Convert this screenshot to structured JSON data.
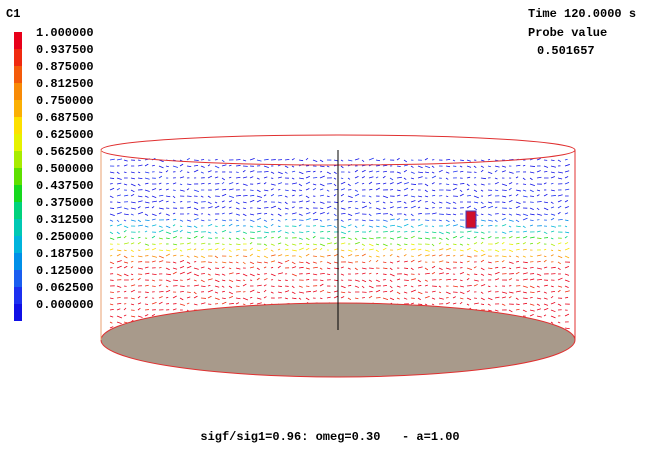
{
  "legend": {
    "title": "C1",
    "entries": [
      {
        "label": "1.000000",
        "color": "#e8001a"
      },
      {
        "label": "0.937500",
        "color": "#f02a10"
      },
      {
        "label": "0.875000",
        "color": "#f45a0a"
      },
      {
        "label": "0.812500",
        "color": "#f88a06"
      },
      {
        "label": "0.750000",
        "color": "#fbb004"
      },
      {
        "label": "0.687500",
        "color": "#fde000"
      },
      {
        "label": "0.625000",
        "color": "#e6f200"
      },
      {
        "label": "0.562500",
        "color": "#a8ec00"
      },
      {
        "label": "0.500000",
        "color": "#5ee000"
      },
      {
        "label": "0.437500",
        "color": "#16d81e"
      },
      {
        "label": "0.375000",
        "color": "#00d27c"
      },
      {
        "label": "0.312500",
        "color": "#00c8b4"
      },
      {
        "label": "0.250000",
        "color": "#00b4dc"
      },
      {
        "label": "0.187500",
        "color": "#0090e8"
      },
      {
        "label": "0.125000",
        "color": "#1a5ef0"
      },
      {
        "label": "0.062500",
        "color": "#1c30f0"
      },
      {
        "label": "0.000000",
        "color": "#1010e6"
      }
    ]
  },
  "info": {
    "time": "Time 120.0000 s",
    "probe_title": "Probe value",
    "probe_value": "0.501657"
  },
  "caption": "sigf/sig1=0.96: omeg=0.30   - a=1.00"
}
